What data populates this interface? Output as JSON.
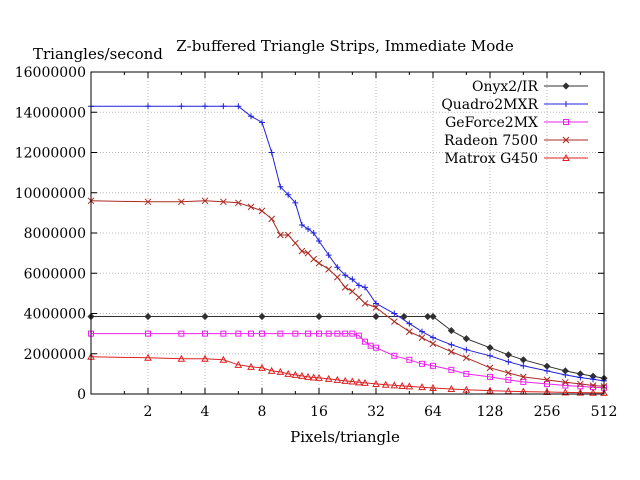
{
  "chart_data": {
    "type": "line",
    "title": "Z-buffered Triangle Strips, Immediate Mode",
    "xlabel": "Pixels/triangle",
    "ylabel": "Triangles/second",
    "x_scale": "log2",
    "xlim": [
      1,
      512
    ],
    "ylim": [
      0,
      16000000
    ],
    "x_ticks": [
      2,
      4,
      8,
      16,
      32,
      64,
      128,
      256,
      512
    ],
    "y_ticks": [
      0,
      2000000,
      4000000,
      6000000,
      8000000,
      10000000,
      12000000,
      14000000,
      16000000
    ],
    "grid": true,
    "legend": "top-right",
    "series": [
      {
        "name": "Onyx2/IR",
        "color": "#303030",
        "marker": "diamond",
        "x": [
          1,
          2,
          4,
          8,
          16,
          32,
          45,
          60,
          64,
          80,
          96,
          128,
          160,
          192,
          256,
          320,
          384,
          448,
          512
        ],
        "y": [
          3850000,
          3850000,
          3850000,
          3850000,
          3850000,
          3850000,
          3850000,
          3850000,
          3850000,
          3150000,
          2750000,
          2300000,
          1950000,
          1700000,
          1380000,
          1150000,
          1000000,
          880000,
          780000
        ]
      },
      {
        "name": "Quadro2MXR",
        "color": "#2020dd",
        "marker": "plus",
        "x": [
          1,
          2,
          3,
          4,
          5,
          6,
          7,
          8,
          9,
          10,
          11,
          12,
          13,
          14,
          15,
          16,
          18,
          20,
          22,
          24,
          26,
          28,
          32,
          40,
          48,
          56,
          64,
          80,
          96,
          128,
          160,
          192,
          256,
          320,
          384,
          448,
          512
        ],
        "y": [
          14300000,
          14300000,
          14300000,
          14300000,
          14300000,
          14300000,
          13800000,
          13500000,
          12000000,
          10300000,
          9900000,
          9500000,
          8400000,
          8200000,
          8000000,
          7600000,
          6900000,
          6300000,
          5900000,
          5700000,
          5400000,
          5300000,
          4500000,
          4000000,
          3500000,
          3100000,
          2800000,
          2450000,
          2200000,
          1900000,
          1600000,
          1400000,
          1150000,
          950000,
          820000,
          730000,
          650000
        ]
      },
      {
        "name": "GeForce2MX",
        "color": "#ee22ee",
        "marker": "square",
        "x": [
          1,
          2,
          3,
          4,
          5,
          6,
          7,
          8,
          10,
          12,
          14,
          16,
          18,
          20,
          22,
          24,
          26,
          28,
          30,
          32,
          40,
          48,
          56,
          64,
          80,
          96,
          128,
          160,
          192,
          256,
          320,
          384,
          448,
          512
        ],
        "y": [
          3000000,
          3000000,
          3000000,
          3000000,
          3000000,
          3000000,
          3000000,
          3000000,
          3000000,
          3000000,
          3000000,
          3000000,
          3000000,
          3000000,
          3000000,
          3000000,
          2900000,
          2600000,
          2400000,
          2300000,
          1900000,
          1700000,
          1500000,
          1400000,
          1200000,
          1000000,
          850000,
          700000,
          600000,
          500000,
          420000,
          380000,
          340000,
          310000
        ]
      },
      {
        "name": "Radeon 7500",
        "color": "#aa2a20",
        "marker": "cross",
        "x": [
          1,
          2,
          3,
          4,
          5,
          6,
          7,
          8,
          9,
          10,
          11,
          12,
          13,
          14,
          15,
          16,
          18,
          20,
          22,
          24,
          26,
          28,
          32,
          40,
          48,
          56,
          64,
          80,
          96,
          128,
          160,
          192,
          256,
          320,
          384,
          448,
          512
        ],
        "y": [
          9600000,
          9550000,
          9550000,
          9600000,
          9550000,
          9500000,
          9300000,
          9100000,
          8700000,
          7900000,
          7900000,
          7500000,
          7100000,
          7000000,
          6700000,
          6500000,
          6200000,
          5800000,
          5300000,
          5100000,
          4800000,
          4500000,
          4300000,
          3600000,
          3100000,
          2800000,
          2500000,
          2100000,
          1800000,
          1300000,
          1050000,
          850000,
          700000,
          580000,
          500000,
          420000,
          380000
        ]
      },
      {
        "name": "Matrox G450",
        "color": "#dd2222",
        "marker": "triangle",
        "x": [
          1,
          2,
          3,
          4,
          5,
          6,
          7,
          8,
          9,
          10,
          11,
          12,
          13,
          14,
          15,
          16,
          18,
          20,
          22,
          24,
          26,
          28,
          32,
          36,
          40,
          44,
          48,
          56,
          64,
          80,
          96,
          128,
          160,
          192,
          256,
          320,
          384,
          448,
          512
        ],
        "y": [
          1850000,
          1800000,
          1750000,
          1750000,
          1700000,
          1450000,
          1350000,
          1300000,
          1150000,
          1100000,
          1000000,
          950000,
          900000,
          850000,
          820000,
          800000,
          750000,
          700000,
          650000,
          620000,
          580000,
          550000,
          500000,
          460000,
          430000,
          400000,
          380000,
          340000,
          300000,
          250000,
          210000,
          170000,
          140000,
          120000,
          100000,
          80000,
          70000,
          60000,
          55000
        ]
      }
    ]
  }
}
